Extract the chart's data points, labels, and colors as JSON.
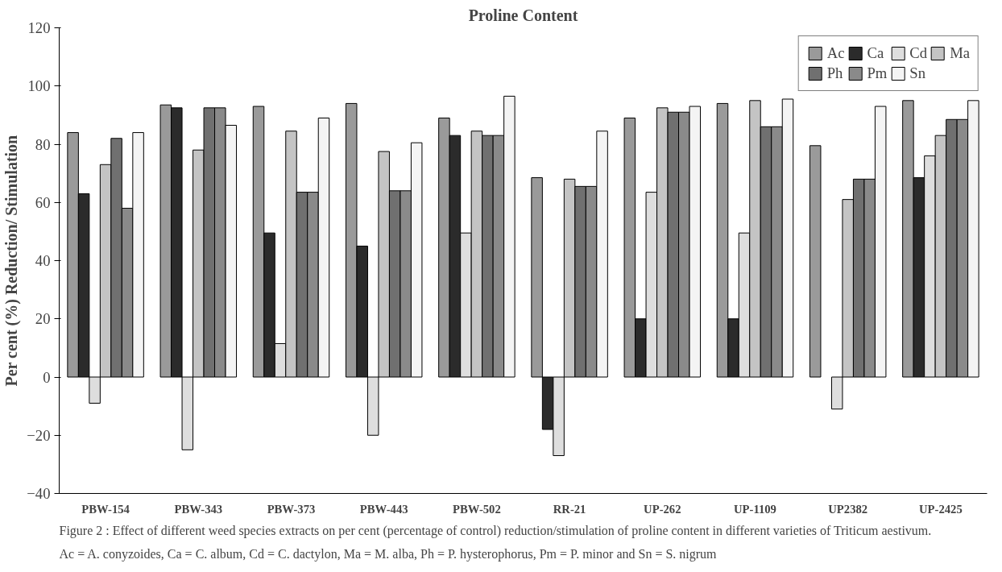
{
  "chart_data": {
    "type": "bar",
    "title": "Proline Content",
    "ylabel": "Per cent (%) Reduction/ Stimulation",
    "categories": [
      "PBW-154",
      "PBW-343",
      "PBW-373",
      "PBW-443",
      "PBW-502",
      "RR-21",
      "UP-262",
      "UP-1109",
      "UP2382",
      "UP-2425"
    ],
    "series": [
      {
        "name": "Ac",
        "color": "#9a9a9a",
        "values": [
          84,
          93.5,
          93,
          94,
          89,
          68.5,
          89,
          94,
          79.5,
          95
        ]
      },
      {
        "name": "Ca",
        "color": "#2b2b2b",
        "values": [
          63,
          92.5,
          49.5,
          45,
          83,
          -18,
          20,
          20,
          null,
          68.5
        ]
      },
      {
        "name": "Cd",
        "color": "#dedede",
        "values": [
          -9,
          -25,
          11.5,
          -20,
          49.5,
          -27,
          63.5,
          49.5,
          -11,
          76
        ]
      },
      {
        "name": "Ma",
        "color": "#c4c4c4",
        "values": [
          73,
          78,
          84.5,
          77.5,
          84.5,
          68,
          92.5,
          95,
          61,
          83
        ]
      },
      {
        "name": "Ph",
        "color": "#707070",
        "values": [
          82,
          92.5,
          63.5,
          64,
          83,
          65.5,
          91,
          86,
          68,
          88.5
        ]
      },
      {
        "name": "Pm",
        "color": "#8a8a8a",
        "values": [
          58,
          92.5,
          63.5,
          64,
          83,
          65.5,
          91,
          86,
          68,
          88.5
        ]
      },
      {
        "name": "Sn",
        "color": "#f4f4f4",
        "values": [
          84,
          86.5,
          89,
          80.5,
          96.5,
          84.5,
          93,
          95.5,
          93,
          95
        ]
      }
    ],
    "ylim": [
      -40,
      120
    ],
    "yticks": [
      -40,
      -20,
      0,
      20,
      40,
      60,
      80,
      100,
      120
    ],
    "grid": false,
    "legend": "top right",
    "annotations": [
      "Figure 2 : Effect of different weed species extracts on per cent (percentage of control) reduction/stimulation of proline content in different varieties of Triticum aestivum.",
      "Ac = A. conyzoides, Ca = C. album, Cd = C. dactylon, Ma = M. alba, Ph = P. hysterophorus, Pm = P. minor and Sn = S. nigrum"
    ]
  }
}
